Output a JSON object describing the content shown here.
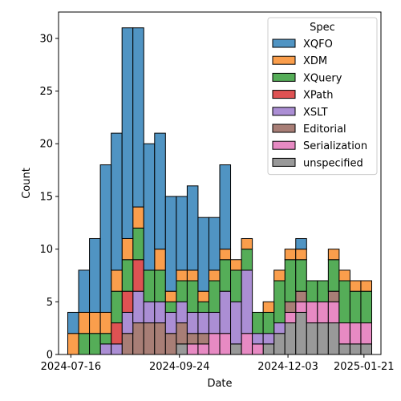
{
  "chart_data": {
    "type": "bar",
    "stacked": true,
    "xlabel": "Date",
    "ylabel": "Count",
    "ylim": [
      0,
      32.5
    ],
    "yticks": [
      0,
      5,
      10,
      15,
      20,
      25,
      30
    ],
    "xticks": [
      {
        "date": "2024-07-16",
        "label": "2024-07-16"
      },
      {
        "date": "2024-09-24",
        "label": "2024-09-24"
      },
      {
        "date": "2024-12-03",
        "label": "2024-12-03"
      },
      {
        "date": "2025-01-21",
        "label": "2025-01-21"
      }
    ],
    "bin_width_days": 7,
    "bin_starts": [
      "2024-07-14",
      "2024-07-21",
      "2024-07-28",
      "2024-08-04",
      "2024-08-11",
      "2024-08-18",
      "2024-08-25",
      "2024-09-01",
      "2024-09-08",
      "2024-09-15",
      "2024-09-22",
      "2024-09-29",
      "2024-10-06",
      "2024-10-13",
      "2024-10-20",
      "2024-10-27",
      "2024-11-03",
      "2024-11-10",
      "2024-11-17",
      "2024-11-24",
      "2024-12-01",
      "2024-12-08",
      "2024-12-15",
      "2024-12-22",
      "2024-12-29",
      "2025-01-05",
      "2025-01-12",
      "2025-01-19"
    ],
    "legend": {
      "title": "Spec",
      "position": "top-right"
    },
    "series": [
      {
        "name": "unspecified",
        "color": "#999999",
        "values": [
          0,
          0,
          0,
          0,
          0,
          0,
          0,
          0,
          0,
          0,
          1,
          0,
          0,
          0,
          0,
          1,
          0,
          0,
          1,
          2,
          3,
          4,
          3,
          3,
          3,
          1,
          1,
          1
        ]
      },
      {
        "name": "Serialization",
        "color": "#e78ac3",
        "values": [
          0,
          0,
          0,
          0,
          0,
          0,
          0,
          0,
          0,
          0,
          0,
          1,
          1,
          2,
          2,
          0,
          2,
          1,
          0,
          0,
          1,
          1,
          2,
          2,
          2,
          2,
          2,
          2
        ]
      },
      {
        "name": "Editorial",
        "color": "#a87e76",
        "values": [
          0,
          0,
          0,
          0,
          0,
          2,
          3,
          3,
          3,
          2,
          2,
          1,
          1,
          0,
          0,
          0,
          0,
          0,
          0,
          0,
          1,
          1,
          0,
          0,
          1,
          0,
          0,
          0
        ]
      },
      {
        "name": "XSLT",
        "color": "#ab8ed4",
        "values": [
          0,
          0,
          0,
          1,
          1,
          2,
          3,
          2,
          2,
          2,
          2,
          2,
          2,
          2,
          4,
          4,
          6,
          1,
          1,
          1,
          0,
          0,
          0,
          0,
          0,
          0,
          0,
          0
        ]
      },
      {
        "name": "XPath",
        "color": "#de5253",
        "values": [
          0,
          0,
          0,
          0,
          2,
          2,
          3,
          0,
          0,
          0,
          0,
          0,
          0,
          0,
          0,
          0,
          0,
          0,
          0,
          0,
          0,
          0,
          0,
          0,
          0,
          0,
          0,
          0
        ]
      },
      {
        "name": "XQuery",
        "color": "#55ad58",
        "values": [
          0,
          2,
          2,
          1,
          3,
          3,
          3,
          3,
          3,
          1,
          2,
          3,
          1,
          3,
          3,
          3,
          2,
          2,
          2,
          4,
          4,
          3,
          2,
          2,
          3,
          4,
          3,
          3
        ]
      },
      {
        "name": "XDM",
        "color": "#fa9e4c",
        "values": [
          2,
          2,
          2,
          2,
          2,
          2,
          2,
          0,
          2,
          1,
          1,
          1,
          1,
          1,
          1,
          1,
          1,
          0,
          1,
          1,
          1,
          1,
          0,
          0,
          1,
          1,
          1,
          1
        ]
      },
      {
        "name": "XQFO",
        "color": "#5094c3",
        "values": [
          2,
          4,
          7,
          14,
          13,
          20,
          17,
          12,
          11,
          9,
          7,
          8,
          7,
          5,
          8,
          0,
          0,
          0,
          0,
          0,
          0,
          1,
          0,
          0,
          0,
          0,
          0,
          0
        ]
      }
    ]
  }
}
